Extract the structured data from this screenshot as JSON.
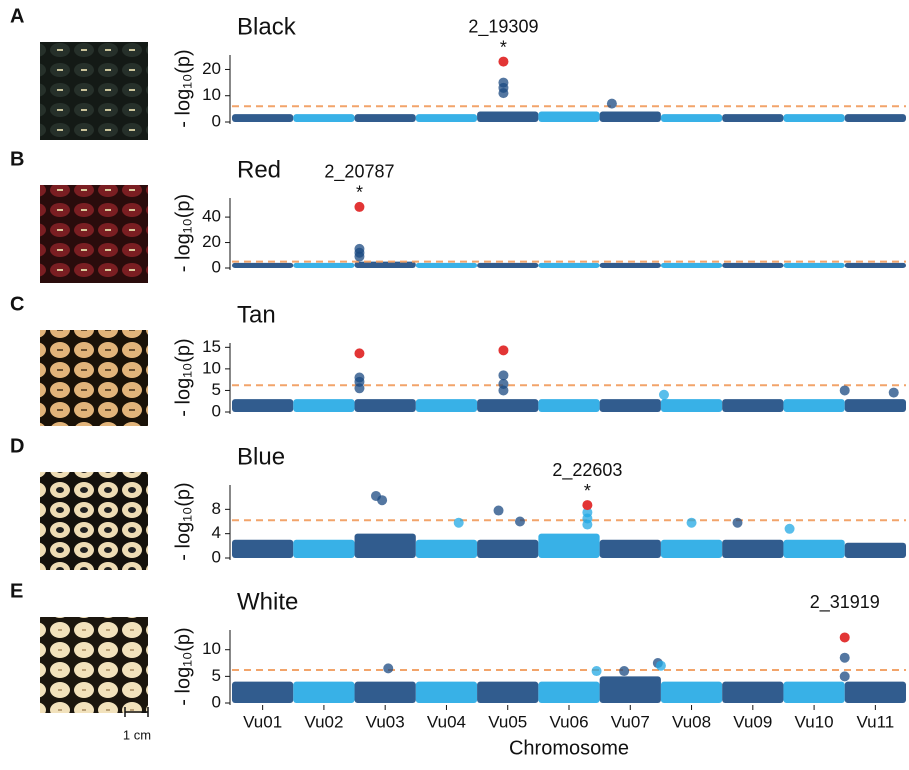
{
  "scale_bar": "1 cm",
  "chart_data": [
    {
      "type": "manhattan",
      "label": "A",
      "title": "Black",
      "ylabel": "- log₁₀(p)",
      "xlim": [
        0.5,
        11.5
      ],
      "ylim": [
        0,
        25.5
      ],
      "yticks": [
        0,
        10,
        20
      ],
      "threshold": 6,
      "colors": [
        "#1b4a82",
        "#22a8e4"
      ],
      "highlight_color": "#e23535",
      "threshold_color": "#f2a46a",
      "background": [
        3,
        3,
        3,
        3,
        4,
        4,
        4,
        3,
        3,
        3,
        3
      ],
      "points": {
        "x": [
          4.93,
          4.93,
          4.93,
          6.7
        ],
        "values": [
          15,
          13,
          11,
          7
        ]
      },
      "highlight": {
        "x": [
          4.93
        ],
        "values": [
          23
        ],
        "labels": [
          "2_19309"
        ]
      },
      "marker": "*"
    },
    {
      "type": "manhattan",
      "label": "B",
      "title": "Red",
      "ylabel": "- log₁₀(p)",
      "xlim": [
        0.5,
        11.5
      ],
      "ylim": [
        0,
        55
      ],
      "yticks": [
        0,
        20,
        40
      ],
      "threshold": 5,
      "colors": [
        "#1b4a82",
        "#22a8e4"
      ],
      "highlight_color": "#e23535",
      "threshold_color": "#f2a46a",
      "background": [
        4,
        4,
        5,
        4,
        4,
        4,
        4,
        4,
        4,
        4,
        4
      ],
      "points": {
        "x": [
          2.58,
          2.58,
          2.58
        ],
        "values": [
          15,
          12,
          9
        ]
      },
      "highlight": {
        "x": [
          2.58
        ],
        "values": [
          48
        ],
        "labels": [
          "2_20787"
        ]
      },
      "marker": "*"
    },
    {
      "type": "manhattan",
      "label": "C",
      "title": "Tan",
      "ylabel": "- log₁₀(p)",
      "xlim": [
        0.5,
        11.5
      ],
      "ylim": [
        0,
        16
      ],
      "yticks": [
        0,
        5,
        10,
        15
      ],
      "threshold": 6.2,
      "colors": [
        "#1b4a82",
        "#22a8e4"
      ],
      "highlight_color": "#e23535",
      "threshold_color": "#f2a46a",
      "background": [
        3,
        3,
        3,
        3,
        3,
        3,
        3,
        3,
        3,
        3,
        3
      ],
      "points": {
        "x": [
          2.58,
          2.58,
          2.58,
          4.93,
          4.93,
          4.93,
          7.55,
          10.5,
          11.3
        ],
        "values": [
          8,
          7,
          5.5,
          8.5,
          6.5,
          5,
          4,
          5,
          4.5
        ]
      },
      "highlight": {
        "x": [
          2.58,
          4.93
        ],
        "values": [
          13.6,
          14.3
        ]
      }
    },
    {
      "type": "manhattan",
      "label": "D",
      "title": "Blue",
      "ylabel": "- log₁₀(p)",
      "xlim": [
        0.5,
        11.5
      ],
      "ylim": [
        0,
        12
      ],
      "yticks": [
        0,
        4,
        8
      ],
      "threshold": 6.2,
      "colors": [
        "#1b4a82",
        "#22a8e4"
      ],
      "highlight_color": "#e23535",
      "threshold_color": "#f2a46a",
      "background": [
        3,
        3,
        4,
        3,
        3,
        4,
        3,
        3,
        3,
        3,
        2.5
      ],
      "points": {
        "x": [
          2.85,
          2.95,
          4.85,
          5.2,
          6.3,
          6.3,
          6.3,
          4.2,
          8.0,
          8.75,
          9.6
        ],
        "values": [
          10.2,
          9.5,
          7.8,
          6,
          7.5,
          6.5,
          5.5,
          5.8,
          5.8,
          5.8,
          4.8
        ]
      },
      "highlight": {
        "x": [
          6.3
        ],
        "values": [
          8.7
        ],
        "labels": [
          "2_22603"
        ]
      },
      "marker": "*"
    },
    {
      "type": "manhattan",
      "label": "E",
      "title": "White",
      "ylabel": "- log₁₀(p)",
      "xlim": [
        0.5,
        11.5
      ],
      "ylim": [
        0,
        13.7
      ],
      "yticks": [
        0,
        5,
        10
      ],
      "threshold": 6.2,
      "colors": [
        "#1b4a82",
        "#22a8e4"
      ],
      "highlight_color": "#e23535",
      "threshold_color": "#f2a46a",
      "background": [
        4,
        4,
        4,
        4,
        4,
        4,
        5,
        4,
        4,
        4,
        4
      ],
      "points": {
        "x": [
          3.05,
          6.45,
          6.9,
          7.45,
          7.5,
          10.5,
          10.5
        ],
        "values": [
          6.5,
          6,
          6,
          7.5,
          7,
          8.5,
          5
        ]
      },
      "highlight": {
        "x": [
          10.5
        ],
        "values": [
          12.3
        ],
        "labels": [
          "2_31919"
        ]
      },
      "xticks": [
        {
          "value": 1,
          "label": "Vu01"
        },
        {
          "value": 2,
          "label": "Vu02"
        },
        {
          "value": 3,
          "label": "Vu03"
        },
        {
          "value": 4,
          "label": "Vu04"
        },
        {
          "value": 5,
          "label": "Vu05"
        },
        {
          "value": 6,
          "label": "Vu06"
        },
        {
          "value": 7,
          "label": "Vu07"
        },
        {
          "value": 8,
          "label": "Vu08"
        },
        {
          "value": 9,
          "label": "Vu09"
        },
        {
          "value": 10,
          "label": "Vu10"
        },
        {
          "value": 11,
          "label": "Vu11"
        }
      ],
      "xlabel": "Chromosome"
    }
  ]
}
